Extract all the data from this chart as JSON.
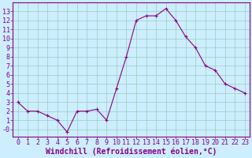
{
  "x": [
    0,
    1,
    2,
    3,
    4,
    5,
    6,
    7,
    8,
    9,
    10,
    11,
    12,
    13,
    14,
    15,
    16,
    17,
    18,
    19,
    20,
    21,
    22,
    23
  ],
  "y": [
    3,
    2,
    2,
    1.5,
    1,
    -0.3,
    2,
    2,
    2.2,
    1,
    4.5,
    8,
    12,
    12.5,
    12.5,
    13.3,
    12,
    10.2,
    9,
    7,
    6.5,
    5,
    4.5,
    4
  ],
  "line_color": "#880088",
  "marker": "+",
  "marker_size": 3,
  "marker_color": "#880088",
  "bg_color": "#cceeff",
  "grid_color": "#99ccbb",
  "xlabel": "Windchill (Refroidissement éolien,°C)",
  "xlim_min": -0.5,
  "xlim_max": 23.5,
  "ylim_min": -0.8,
  "ylim_max": 14.0,
  "yticks": [
    0,
    1,
    2,
    3,
    4,
    5,
    6,
    7,
    8,
    9,
    10,
    11,
    12,
    13
  ],
  "ytick_labels": [
    "-0",
    "1",
    "2",
    "3",
    "4",
    "5",
    "6",
    "7",
    "8",
    "9",
    "10",
    "11",
    "12",
    "13"
  ],
  "xticks": [
    0,
    1,
    2,
    3,
    4,
    5,
    6,
    7,
    8,
    9,
    10,
    11,
    12,
    13,
    14,
    15,
    16,
    17,
    18,
    19,
    20,
    21,
    22,
    23
  ],
  "axis_color": "#880088",
  "tick_label_color": "#880088",
  "label_fontsize": 7,
  "tick_fontsize": 6,
  "line_width": 0.8
}
